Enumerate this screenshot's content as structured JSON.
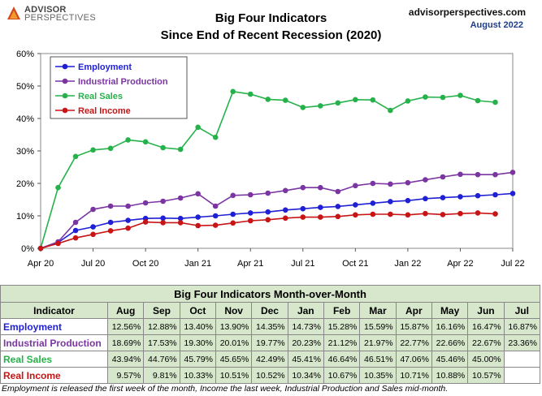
{
  "header": {
    "brand_line1": "ADVISOR",
    "brand_line2": "PERSPECTIVES",
    "title_line1": "Big Four Indicators",
    "title_line2": "Since  End of Recent Recession (2020)",
    "site": "advisorperspectives.com",
    "date": "August 2022"
  },
  "colors": {
    "employment": "#1f1fd6",
    "industrial": "#7b35a3",
    "sales": "#26b24a",
    "income": "#c81414",
    "table_fill": "#d7e7cb"
  },
  "chart_data": {
    "type": "line",
    "x": [
      "Apr 20",
      "May 20",
      "Jun 20",
      "Jul 20",
      "Aug 20",
      "Sep 20",
      "Oct 20",
      "Nov 20",
      "Dec 20",
      "Jan 21",
      "Feb 21",
      "Mar 21",
      "Apr 21",
      "May 21",
      "Jun 21",
      "Jul 21",
      "Aug 21",
      "Sep 21",
      "Oct 21",
      "Nov 21",
      "Dec 21",
      "Jan 22",
      "Feb 22",
      "Mar 22",
      "Apr 22",
      "May 22",
      "Jun 22",
      "Jul 22"
    ],
    "x_ticks": [
      "Apr 20",
      "Jul 20",
      "Oct 20",
      "Jan 21",
      "Apr 21",
      "Jul 21",
      "Oct 21",
      "Jan 22",
      "Apr 22",
      "Jul 22"
    ],
    "y_ticks": [
      "0%",
      "10%",
      "20%",
      "30%",
      "40%",
      "50%",
      "60%"
    ],
    "ylim": [
      0,
      60
    ],
    "legend_position": "top-left",
    "grid": false,
    "series": [
      {
        "name": "Employment",
        "key": "employment",
        "values": [
          0,
          1.8,
          5.5,
          6.6,
          8.0,
          8.6,
          9.2,
          9.3,
          9.2,
          9.6,
          10.0,
          10.5,
          10.9,
          11.2,
          11.8,
          12.2,
          12.6,
          12.9,
          13.4,
          13.9,
          14.4,
          14.7,
          15.3,
          15.6,
          15.9,
          16.2,
          16.5,
          16.9
        ]
      },
      {
        "name": "Industrial Production",
        "key": "industrial",
        "values": [
          0,
          2.0,
          8.0,
          12.0,
          13.0,
          13.0,
          14.0,
          14.5,
          15.5,
          16.8,
          13.0,
          16.3,
          16.5,
          17.0,
          17.8,
          18.7,
          18.7,
          17.5,
          19.3,
          20.0,
          19.8,
          20.2,
          21.1,
          22.0,
          22.8,
          22.7,
          22.7,
          23.4
        ]
      },
      {
        "name": "Real Sales",
        "key": "sales",
        "values": [
          0,
          18.7,
          28.3,
          30.3,
          30.8,
          33.4,
          32.8,
          31.0,
          30.5,
          37.3,
          34.2,
          48.3,
          47.5,
          45.9,
          45.6,
          43.4,
          43.9,
          44.8,
          45.8,
          45.7,
          42.5,
          45.4,
          46.6,
          46.5,
          47.1,
          45.5,
          45.0,
          null
        ]
      },
      {
        "name": "Real Income",
        "key": "income",
        "values": [
          0,
          1.5,
          3.2,
          4.3,
          5.4,
          6.2,
          8.1,
          7.9,
          7.9,
          7.0,
          7.1,
          7.8,
          8.5,
          8.8,
          9.3,
          9.6,
          9.6,
          9.8,
          10.3,
          10.5,
          10.5,
          10.3,
          10.7,
          10.4,
          10.7,
          10.9,
          10.6,
          null
        ]
      }
    ]
  },
  "table": {
    "caption": "Big Four Indicators Month-over-Month",
    "indicator_header": "Indicator",
    "months": [
      "Aug",
      "Sep",
      "Oct",
      "Nov",
      "Dec",
      "Jan",
      "Feb",
      "Mar",
      "Apr",
      "May",
      "Jun",
      "Jul"
    ],
    "rows": [
      {
        "name": "Employment",
        "key": "employment",
        "values": [
          "12.56%",
          "12.88%",
          "13.40%",
          "13.90%",
          "14.35%",
          "14.73%",
          "15.28%",
          "15.59%",
          "15.87%",
          "16.16%",
          "16.47%",
          "16.87%"
        ]
      },
      {
        "name": "Industrial Production",
        "key": "industrial",
        "values": [
          "18.69%",
          "17.53%",
          "19.30%",
          "20.01%",
          "19.77%",
          "20.23%",
          "21.12%",
          "21.97%",
          "22.77%",
          "22.66%",
          "22.67%",
          "23.36%"
        ]
      },
      {
        "name": "Real Sales",
        "key": "sales",
        "values": [
          "43.94%",
          "44.76%",
          "45.79%",
          "45.65%",
          "42.49%",
          "45.41%",
          "46.64%",
          "46.51%",
          "47.06%",
          "45.46%",
          "45.00%",
          ""
        ]
      },
      {
        "name": "Real Income",
        "key": "income",
        "values": [
          "9.57%",
          "9.81%",
          "10.33%",
          "10.51%",
          "10.52%",
          "10.34%",
          "10.67%",
          "10.35%",
          "10.71%",
          "10.88%",
          "10.57%",
          ""
        ]
      }
    ]
  },
  "footnote": "Employment is released the first week of the month, Income the last week, Industrial Production and Sales mid-month."
}
